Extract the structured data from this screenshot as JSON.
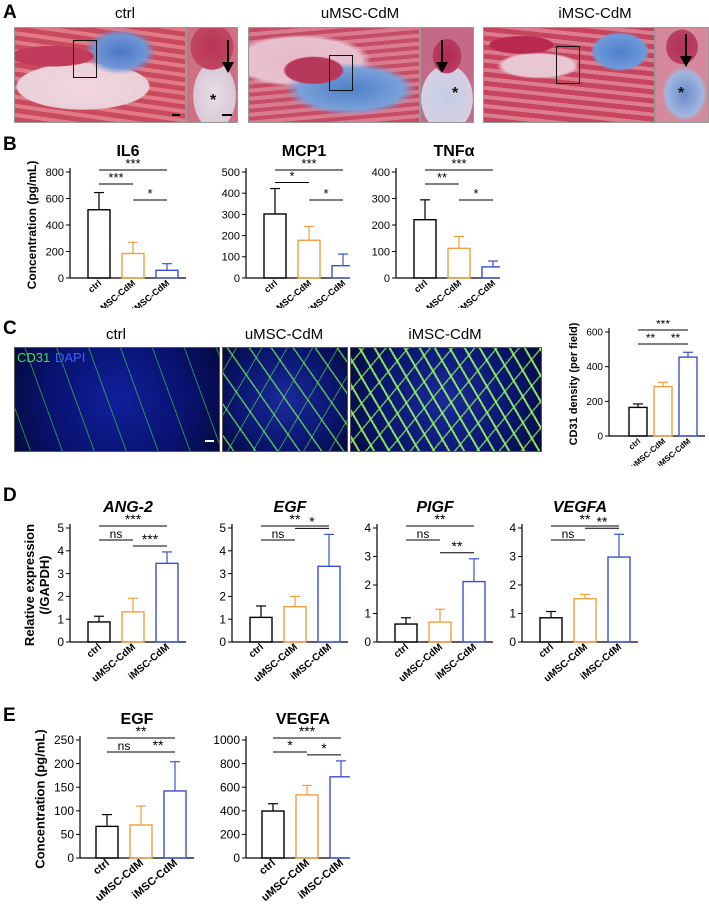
{
  "panels": {
    "A": "A",
    "B": "B",
    "C": "C",
    "D": "D",
    "E": "E"
  },
  "panelA": {
    "titles": [
      "ctrl",
      "uMSC-CdM",
      "iMSC-CdM"
    ],
    "marker_star": "*"
  },
  "panelC": {
    "titles": [
      "ctrl",
      "uMSC-CdM",
      "iMSC-CdM"
    ],
    "stain_cd31": "CD31",
    "stain_dapi": "DAPI"
  },
  "colors": {
    "ctrl": "#000000",
    "uMSC": "#f0a040",
    "iMSC": "#3a4fd0"
  },
  "chart_data": [
    {
      "id": "B-IL6",
      "type": "bar",
      "title": "IL6",
      "title_italic": false,
      "ylabel": "Concentration (pg/mL)",
      "ylim": [
        0,
        800
      ],
      "yticks": [
        0,
        200,
        400,
        600,
        800
      ],
      "categories": [
        "ctrl",
        "uMSC-CdM",
        "iMSC-CdM"
      ],
      "values": [
        515,
        185,
        58
      ],
      "errors": [
        130,
        85,
        50
      ],
      "sig": [
        {
          "from": 0,
          "to": 1,
          "label": "***",
          "level": 0
        },
        {
          "from": 0,
          "to": 2,
          "label": "***",
          "level": 1
        },
        {
          "from": 1,
          "to": 2,
          "label": "*",
          "level": 2
        }
      ]
    },
    {
      "id": "B-MCP1",
      "type": "bar",
      "title": "MCP1",
      "title_italic": false,
      "ylabel": "",
      "ylim": [
        0,
        500
      ],
      "yticks": [
        0,
        100,
        200,
        300,
        400,
        500
      ],
      "categories": [
        "ctrl",
        "uMSC-CdM",
        "iMSC-CdM"
      ],
      "values": [
        302,
        178,
        58
      ],
      "errors": [
        120,
        65,
        55
      ],
      "sig": [
        {
          "from": 0,
          "to": 1,
          "label": "*",
          "level": 0
        },
        {
          "from": 0,
          "to": 2,
          "label": "***",
          "level": 1
        },
        {
          "from": 1,
          "to": 2,
          "label": "*",
          "level": 2
        }
      ]
    },
    {
      "id": "B-TNFa",
      "type": "bar",
      "title": "TNFα",
      "title_italic": false,
      "ylabel": "",
      "ylim": [
        0,
        400
      ],
      "yticks": [
        0,
        100,
        200,
        300,
        400
      ],
      "categories": [
        "ctrl",
        "uMSC-CdM",
        "iMSC-CdM"
      ],
      "values": [
        220,
        112,
        42
      ],
      "errors": [
        75,
        45,
        22
      ],
      "sig": [
        {
          "from": 0,
          "to": 1,
          "label": "**",
          "level": 0
        },
        {
          "from": 0,
          "to": 2,
          "label": "***",
          "level": 1
        },
        {
          "from": 1,
          "to": 2,
          "label": "*",
          "level": 2
        }
      ]
    },
    {
      "id": "C-CD31",
      "type": "bar",
      "title": "",
      "title_italic": false,
      "ylabel": "CD31 density (per field)",
      "ylim": [
        0,
        600
      ],
      "yticks": [
        0,
        200,
        400,
        600
      ],
      "categories": [
        "ctrl",
        "uMSC-CdM",
        "iMSC-CdM"
      ],
      "values": [
        165,
        285,
        455
      ],
      "errors": [
        20,
        25,
        28
      ],
      "sig": [
        {
          "from": 0,
          "to": 1,
          "label": "**",
          "level": 0
        },
        {
          "from": 0,
          "to": 2,
          "label": "***",
          "level": 2
        },
        {
          "from": 1,
          "to": 2,
          "label": "**",
          "level": 1
        }
      ]
    },
    {
      "id": "D-ANG2",
      "type": "bar",
      "title": "ANG-2",
      "title_italic": true,
      "ylabel": "Relative expression (/GAPDH)",
      "ylim": [
        0,
        5
      ],
      "yticks": [
        0,
        1,
        2,
        3,
        4,
        5
      ],
      "categories": [
        "ctrl",
        "uMSC-CdM",
        "iMSC-CdM"
      ],
      "values": [
        0.88,
        1.32,
        3.45
      ],
      "errors": [
        0.25,
        0.6,
        0.5
      ],
      "sig": [
        {
          "from": 0,
          "to": 1,
          "label": "ns",
          "level": 0
        },
        {
          "from": 0,
          "to": 2,
          "label": "***",
          "level": 1
        },
        {
          "from": 1,
          "to": 2,
          "label": "***",
          "level": 0.5
        }
      ]
    },
    {
      "id": "D-EGF",
      "type": "bar",
      "title": "EGF",
      "title_italic": true,
      "ylabel": "",
      "ylim": [
        0,
        5
      ],
      "yticks": [
        0,
        1,
        2,
        3,
        4,
        5
      ],
      "categories": [
        "ctrl",
        "uMSC-CdM",
        "iMSC-CdM"
      ],
      "values": [
        1.08,
        1.55,
        3.32
      ],
      "errors": [
        0.5,
        0.45,
        1.4
      ],
      "sig": [
        {
          "from": 0,
          "to": 1,
          "label": "ns",
          "level": 0
        },
        {
          "from": 0,
          "to": 2,
          "label": "**",
          "level": 1
        },
        {
          "from": 1,
          "to": 2,
          "label": "*",
          "level": 0
        }
      ]
    },
    {
      "id": "D-PIGF",
      "type": "bar",
      "title": "PIGF",
      "title_italic": true,
      "ylabel": "",
      "ylim": [
        0,
        4
      ],
      "yticks": [
        0,
        1,
        2,
        3,
        4
      ],
      "categories": [
        "ctrl",
        "uMSC-CdM",
        "iMSC-CdM"
      ],
      "values": [
        0.63,
        0.7,
        2.12
      ],
      "errors": [
        0.22,
        0.45,
        0.8
      ],
      "sig": [
        {
          "from": 0,
          "to": 1,
          "label": "ns",
          "level": 0
        },
        {
          "from": 0,
          "to": 2,
          "label": "**",
          "level": 1
        },
        {
          "from": 1,
          "to": 2,
          "label": "**",
          "level": 0
        }
      ]
    },
    {
      "id": "D-VEGFA",
      "type": "bar",
      "title": "VEGFA",
      "title_italic": true,
      "ylabel": "",
      "ylim": [
        0,
        4
      ],
      "yticks": [
        0,
        1,
        2,
        3,
        4
      ],
      "categories": [
        "ctrl",
        "uMSC-CdM",
        "iMSC-CdM"
      ],
      "values": [
        0.85,
        1.52,
        2.98
      ],
      "errors": [
        0.22,
        0.15,
        0.8
      ],
      "sig": [
        {
          "from": 0,
          "to": 1,
          "label": "ns",
          "level": 0
        },
        {
          "from": 0,
          "to": 2,
          "label": "**",
          "level": 1
        },
        {
          "from": 1,
          "to": 2,
          "label": "**",
          "level": 0
        }
      ]
    },
    {
      "id": "E-EGF",
      "type": "bar",
      "title": "EGF",
      "title_italic": false,
      "ylabel": "Concentration (pg/mL)",
      "ylim": [
        0,
        250
      ],
      "yticks": [
        0,
        50,
        100,
        150,
        200,
        250
      ],
      "categories": [
        "ctrl",
        "uMSC-CdM",
        "iMSC-CdM"
      ],
      "values": [
        67,
        70,
        142
      ],
      "errors": [
        25,
        40,
        62
      ],
      "sig": [
        {
          "from": 0,
          "to": 1,
          "label": "ns",
          "level": 0
        },
        {
          "from": 0,
          "to": 2,
          "label": "**",
          "level": 2
        },
        {
          "from": 1,
          "to": 2,
          "label": "**",
          "level": 1
        }
      ]
    },
    {
      "id": "E-VEGFA",
      "type": "bar",
      "title": "VEGFA",
      "title_italic": false,
      "ylabel": "",
      "ylim": [
        0,
        1000
      ],
      "yticks": [
        0,
        200,
        400,
        600,
        800,
        1000
      ],
      "categories": [
        "ctrl",
        "uMSC-CdM",
        "iMSC-CdM"
      ],
      "values": [
        398,
        535,
        688
      ],
      "errors": [
        62,
        80,
        135
      ],
      "sig": [
        {
          "from": 0,
          "to": 1,
          "label": "*",
          "level": 0
        },
        {
          "from": 0,
          "to": 2,
          "label": "***",
          "level": 1
        },
        {
          "from": 1,
          "to": 2,
          "label": "*",
          "level": 0
        }
      ]
    }
  ]
}
